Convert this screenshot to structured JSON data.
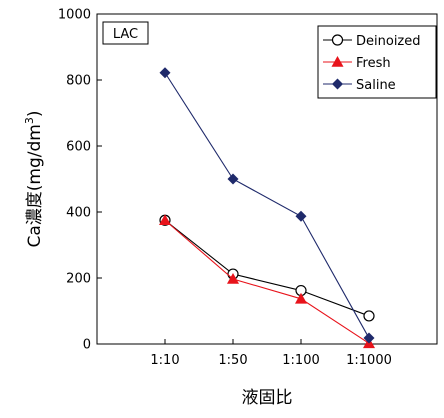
{
  "chart_data": {
    "type": "line",
    "badge": "LAC",
    "xlabel": "液固比",
    "ylabel_text": "Ca濃度(mg/dm",
    "ylabel_sup": "3",
    "ylabel_close": ")",
    "categories": [
      "1:10",
      "1:50",
      "1:100",
      "1:1000"
    ],
    "ylim": [
      0,
      1000
    ],
    "yticks": [
      0,
      200,
      400,
      600,
      800,
      1000
    ],
    "grid": false,
    "legend_position": "top-right",
    "series": [
      {
        "name": "Deinoized",
        "color": "#000000",
        "marker": "circle-open",
        "values": [
          375,
          212,
          162,
          85
        ]
      },
      {
        "name": "Fresh",
        "color": "#e8131b",
        "marker": "triangle",
        "values": [
          375,
          197,
          137,
          2
        ]
      },
      {
        "name": "Saline",
        "color": "#1f2a6b",
        "marker": "diamond",
        "values": [
          822,
          500,
          387,
          18
        ]
      }
    ]
  }
}
